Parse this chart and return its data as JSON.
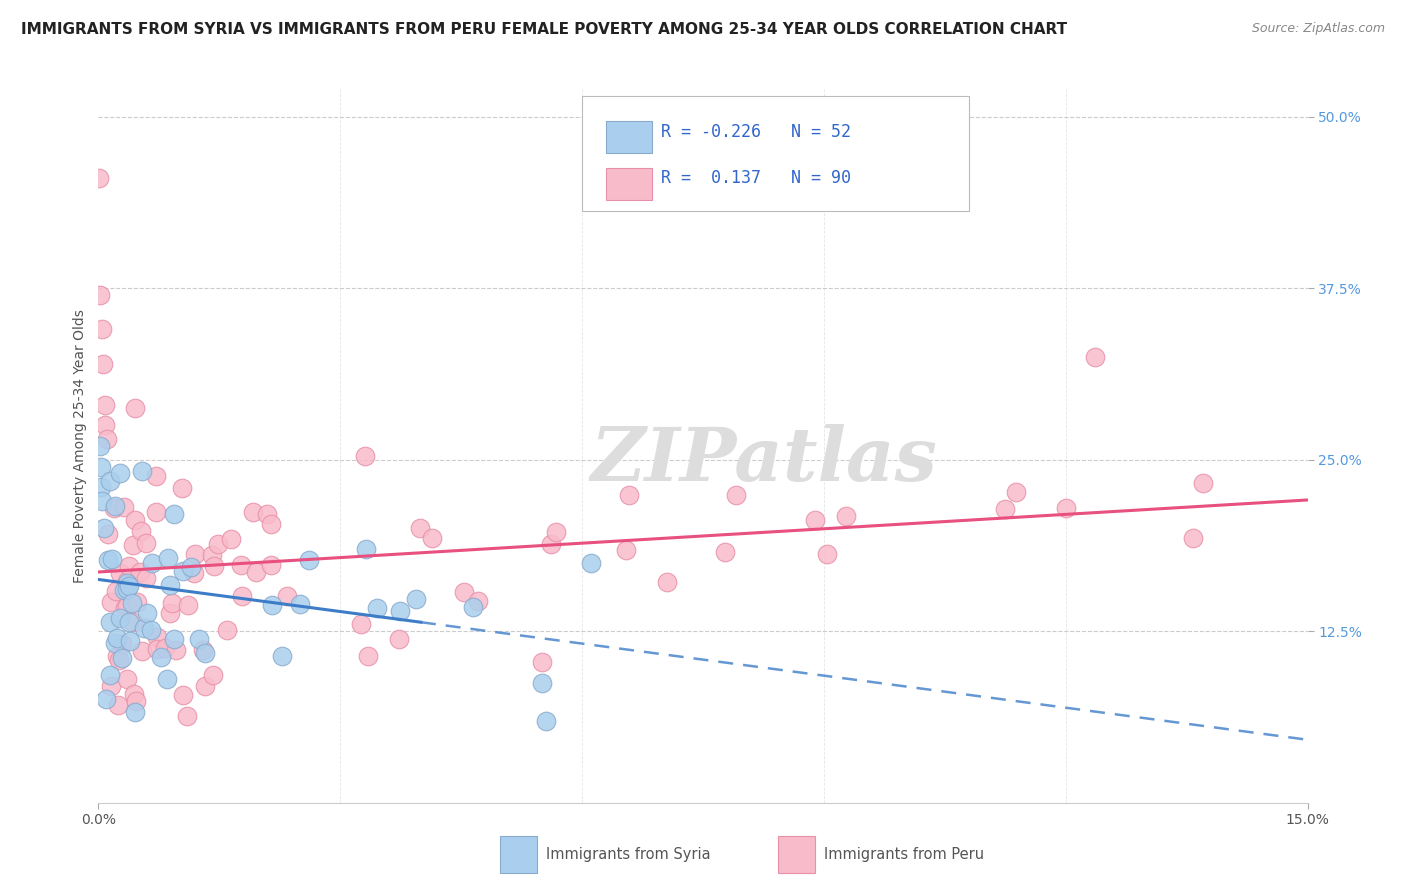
{
  "title": "IMMIGRANTS FROM SYRIA VS IMMIGRANTS FROM PERU FEMALE POVERTY AMONG 25-34 YEAR OLDS CORRELATION CHART",
  "source": "Source: ZipAtlas.com",
  "ylabel": "Female Poverty Among 25-34 Year Olds",
  "xlim": [
    0.0,
    0.15
  ],
  "ylim": [
    0.0,
    0.52
  ],
  "x_ticks": [
    0.0,
    0.15
  ],
  "x_tick_labels": [
    "0.0%",
    "15.0%"
  ],
  "y_ticks_right": [
    0.125,
    0.25,
    0.375,
    0.5
  ],
  "y_tick_labels_right": [
    "12.5%",
    "25.0%",
    "37.5%",
    "50.0%"
  ],
  "syria_color": "#AACFEE",
  "syria_edge_color": "#88AACC",
  "peru_color": "#F8BBCA",
  "peru_edge_color": "#E890A8",
  "syria_R": -0.226,
  "syria_N": 52,
  "peru_R": 0.137,
  "peru_N": 90,
  "syria_line_color": "#3D7DC8",
  "peru_line_color": "#E85080",
  "legend_R_color": "#3366CC",
  "legend_N_color": "#2255AA",
  "background_color": "#FFFFFF",
  "grid_color": "#CCCCCC",
  "watermark_color": "#DDDDDD",
  "title_fontsize": 11,
  "source_fontsize": 9,
  "right_tick_color": "#5599DD",
  "bottom_legend_text_color": "#555555"
}
